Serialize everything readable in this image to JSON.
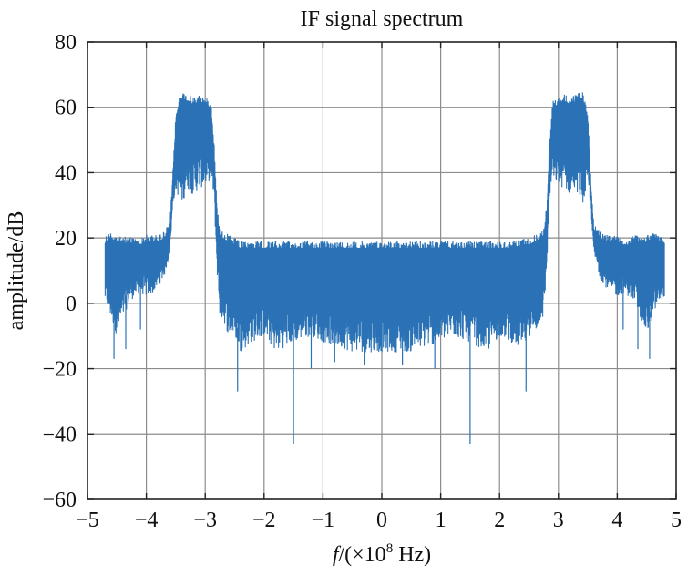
{
  "chart_data": {
    "type": "line",
    "title": "IF signal spectrum",
    "xlabel_italic": "f",
    "xlabel_rest": "/(×10",
    "xlabel_exp": "8",
    "xlabel_unit": " Hz)",
    "ylabel": "amplitude/dB",
    "xlim": [
      -5,
      5
    ],
    "ylim": [
      -60,
      80
    ],
    "xticks": [
      "−5",
      "−4",
      "−3",
      "−2",
      "−1",
      "0",
      "1",
      "2",
      "3",
      "4",
      "5"
    ],
    "yticks": [
      "−60",
      "−40",
      "−20",
      "0",
      "20",
      "40",
      "60",
      "80"
    ],
    "xtick_values": [
      -5,
      -4,
      -3,
      -2,
      -1,
      0,
      1,
      2,
      3,
      4,
      5
    ],
    "ytick_values": [
      -60,
      -40,
      -20,
      0,
      20,
      40,
      60,
      80
    ],
    "grid": true,
    "line_color": "#2a72b5",
    "series": [
      {
        "x": [
          -4.7,
          -4.6,
          -4.5,
          -4.4,
          -4.3,
          -4.2,
          -4.1,
          -4.0,
          -3.9,
          -3.8,
          -3.7,
          -3.6,
          -3.55,
          -3.5,
          -3.45,
          -3.4,
          -3.3,
          -3.2,
          -3.1,
          -3.0,
          -2.9,
          -2.85,
          -2.8,
          -2.75,
          -2.7,
          -2.6,
          -2.5,
          -2.4,
          -2.2,
          -2.0,
          -1.8,
          -1.5,
          -1.2,
          -1.0,
          -0.5,
          0.0,
          0.5,
          1.0,
          1.2,
          1.5,
          1.8,
          2.0,
          2.2,
          2.4,
          2.5,
          2.6,
          2.7,
          2.75,
          2.8,
          2.85,
          2.9,
          3.0,
          3.1,
          3.2,
          3.3,
          3.4,
          3.45,
          3.5,
          3.55,
          3.6,
          3.7,
          3.8,
          3.9,
          4.0,
          4.1,
          4.2,
          4.3,
          4.4,
          4.5,
          4.6,
          4.7,
          4.8
        ],
        "upper": [
          21,
          22,
          21,
          20,
          21,
          20,
          20,
          21,
          21,
          21,
          22,
          25,
          40,
          58,
          63,
          65,
          64,
          63,
          64,
          63,
          62,
          50,
          30,
          23,
          22,
          21,
          20,
          19,
          19,
          19,
          19,
          19,
          19,
          19,
          19,
          19,
          19,
          19,
          19,
          19,
          19,
          19,
          19,
          20,
          20,
          21,
          22,
          23,
          30,
          50,
          62,
          63,
          64,
          63,
          64,
          65,
          63,
          58,
          40,
          25,
          22,
          21,
          21,
          21,
          20,
          20,
          21,
          20,
          21,
          22,
          21,
          20
        ],
        "lower": [
          0,
          -5,
          -10,
          -5,
          0,
          2,
          3,
          2,
          3,
          5,
          8,
          15,
          30,
          35,
          32,
          30,
          35,
          33,
          35,
          36,
          38,
          32,
          10,
          -5,
          -5,
          -10,
          -10,
          -15,
          -12,
          -10,
          -15,
          -12,
          -10,
          -12,
          -15,
          -15,
          -15,
          -12,
          -10,
          -12,
          -15,
          -10,
          -12,
          -15,
          -10,
          -10,
          -5,
          -5,
          10,
          32,
          38,
          36,
          35,
          33,
          35,
          30,
          32,
          35,
          30,
          15,
          8,
          5,
          3,
          2,
          3,
          2,
          0,
          -5,
          -10,
          -5,
          0,
          2
        ]
      }
    ],
    "spikes": [
      {
        "x": -4.55,
        "y": -17
      },
      {
        "x": -4.35,
        "y": -14
      },
      {
        "x": -4.1,
        "y": -8
      },
      {
        "x": -2.45,
        "y": -27
      },
      {
        "x": -1.5,
        "y": -43
      },
      {
        "x": -1.2,
        "y": -20
      },
      {
        "x": -0.8,
        "y": -18
      },
      {
        "x": -0.3,
        "y": -19
      },
      {
        "x": 0.35,
        "y": -19
      },
      {
        "x": 0.9,
        "y": -20
      },
      {
        "x": 1.5,
        "y": -43
      },
      {
        "x": 2.45,
        "y": -27
      },
      {
        "x": 4.1,
        "y": -8
      },
      {
        "x": 4.35,
        "y": -14
      },
      {
        "x": 4.55,
        "y": -17
      }
    ]
  }
}
